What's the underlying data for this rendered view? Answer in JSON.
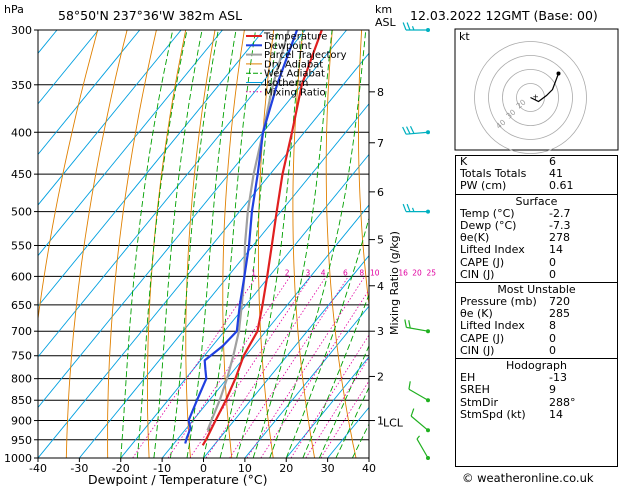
{
  "header": {
    "unit_left": "hPa",
    "location": "58°50'N 237°36'W 382m ASL",
    "unit_km": "km",
    "unit_asl": "ASL",
    "datetime": "12.03.2022 12GMT (Base: 00)"
  },
  "chart_data": {
    "type": "skewt",
    "pressure_levels": [
      300,
      350,
      400,
      450,
      500,
      550,
      600,
      650,
      700,
      750,
      800,
      850,
      900,
      950,
      1000
    ],
    "pressure_labels": [
      "300",
      "350",
      "400",
      "450",
      "500",
      "550",
      "600",
      "650",
      "700",
      "750",
      "800",
      "850",
      "900",
      "950",
      "1000"
    ],
    "x_ticks": [
      -40,
      -30,
      -20,
      -10,
      0,
      10,
      20,
      30,
      40
    ],
    "x_tick_labels": [
      "-40",
      "-30",
      "-20",
      "-10",
      "0",
      "10",
      "20",
      "30",
      "40"
    ],
    "xlabel": "Dewpoint / Temperature (°C)",
    "ylabel_right": "Mixing Ratio (g/kg)",
    "km_ticks": [
      {
        "km": "8",
        "p": 357
      },
      {
        "km": "7",
        "p": 412
      },
      {
        "km": "6",
        "p": 473
      },
      {
        "km": "5",
        "p": 541
      },
      {
        "km": "4",
        "p": 616
      },
      {
        "km": "3",
        "p": 700
      },
      {
        "km": "2",
        "p": 795
      },
      {
        "km": "1",
        "p": 900
      }
    ],
    "lcl_label": "LCL",
    "mixing_ratio_labels": [
      "1",
      "2",
      "3",
      "4",
      "6",
      "8",
      "10",
      "16",
      "20",
      "25"
    ],
    "mixing_ratio_values": [
      1,
      2,
      3,
      4,
      6,
      8,
      10,
      16,
      20,
      25
    ],
    "legend": [
      "Temperature",
      "Dewpoint",
      "Parcel Trajectory",
      "Dry Adiabat",
      "Wet Adiabat",
      "Isotherm",
      "Mixing Ratio"
    ],
    "colors": {
      "temperature": "#e02020",
      "dewpoint": "#2040e0",
      "parcel": "#a0a0a0",
      "dry_adiabat": "#e08000",
      "wet_adiabat": "#00a000",
      "isotherm": "#00a0e0",
      "mixing_ratio": "#e000a0"
    },
    "temperature_profile": [
      {
        "p": 300,
        "t": -56
      },
      {
        "p": 350,
        "t": -50
      },
      {
        "p": 400,
        "t": -43
      },
      {
        "p": 450,
        "t": -37
      },
      {
        "p": 500,
        "t": -31
      },
      {
        "p": 550,
        "t": -25.5
      },
      {
        "p": 600,
        "t": -20.5
      },
      {
        "p": 650,
        "t": -16
      },
      {
        "p": 700,
        "t": -12
      },
      {
        "p": 750,
        "t": -10.5
      },
      {
        "p": 800,
        "t": -8
      },
      {
        "p": 850,
        "t": -6
      },
      {
        "p": 900,
        "t": -4.5
      },
      {
        "p": 950,
        "t": -3
      },
      {
        "p": 965,
        "t": -2.7
      }
    ],
    "dewpoint_profile": [
      {
        "p": 300,
        "t": -62
      },
      {
        "p": 350,
        "t": -56
      },
      {
        "p": 400,
        "t": -50
      },
      {
        "p": 450,
        "t": -43
      },
      {
        "p": 500,
        "t": -37
      },
      {
        "p": 550,
        "t": -31
      },
      {
        "p": 600,
        "t": -26
      },
      {
        "p": 650,
        "t": -21.5
      },
      {
        "p": 700,
        "t": -17
      },
      {
        "p": 730,
        "t": -17.5
      },
      {
        "p": 760,
        "t": -19
      },
      {
        "p": 780,
        "t": -17
      },
      {
        "p": 800,
        "t": -15
      },
      {
        "p": 850,
        "t": -13
      },
      {
        "p": 900,
        "t": -11
      },
      {
        "p": 920,
        "t": -9
      },
      {
        "p": 945,
        "t": -8
      },
      {
        "p": 960,
        "t": -7.3
      }
    ],
    "parcel_profile": [
      {
        "p": 300,
        "t": -64
      },
      {
        "p": 350,
        "t": -57
      },
      {
        "p": 400,
        "t": -50
      },
      {
        "p": 450,
        "t": -44
      },
      {
        "p": 500,
        "t": -38
      },
      {
        "p": 550,
        "t": -32
      },
      {
        "p": 600,
        "t": -26
      },
      {
        "p": 650,
        "t": -21
      },
      {
        "p": 700,
        "t": -16.5
      },
      {
        "p": 750,
        "t": -13
      },
      {
        "p": 800,
        "t": -10
      },
      {
        "p": 850,
        "t": -7.5
      },
      {
        "p": 900,
        "t": -5.5
      },
      {
        "p": 925,
        "t": -4.5
      }
    ],
    "wind_barbs": [
      {
        "p": 300,
        "dir": 270,
        "spd": 25
      },
      {
        "p": 400,
        "dir": 265,
        "spd": 30
      },
      {
        "p": 500,
        "dir": 270,
        "spd": 25
      },
      {
        "p": 700,
        "dir": 280,
        "spd": 20
      },
      {
        "p": 850,
        "dir": 300,
        "spd": 10
      },
      {
        "p": 925,
        "dir": 310,
        "spd": 10
      },
      {
        "p": 1000,
        "dir": 330,
        "spd": 5
      }
    ]
  },
  "hodograph": {
    "label": "kt",
    "ring_labels": [
      "40",
      "30",
      "20"
    ]
  },
  "indices": {
    "top": [
      {
        "label": "K",
        "value": "6"
      },
      {
        "label": "Totals Totals",
        "value": "41"
      },
      {
        "label": "PW (cm)",
        "value": "0.61"
      }
    ],
    "surface_title": "Surface",
    "surface": [
      {
        "label": "Temp (°C)",
        "value": "-2.7"
      },
      {
        "label": "Dewp (°C)",
        "value": "-7.3"
      },
      {
        "label": "θe(K)",
        "value": "278"
      },
      {
        "label": "Lifted Index",
        "value": "14"
      },
      {
        "label": "CAPE (J)",
        "value": "0"
      },
      {
        "label": "CIN (J)",
        "value": "0"
      }
    ],
    "unstable_title": "Most Unstable",
    "unstable": [
      {
        "label": "Pressure (mb)",
        "value": "720"
      },
      {
        "label": "θe (K)",
        "value": "285"
      },
      {
        "label": "Lifted Index",
        "value": "8"
      },
      {
        "label": "CAPE (J)",
        "value": "0"
      },
      {
        "label": "CIN (J)",
        "value": "0"
      }
    ],
    "hodo_title": "Hodograph",
    "hodo": [
      {
        "label": "EH",
        "value": "-13"
      },
      {
        "label": "SREH",
        "value": "9"
      },
      {
        "label": "StmDir",
        "value": "288°"
      },
      {
        "label": "StmSpd (kt)",
        "value": "14"
      }
    ]
  },
  "credit": "© weatheronline.co.uk"
}
